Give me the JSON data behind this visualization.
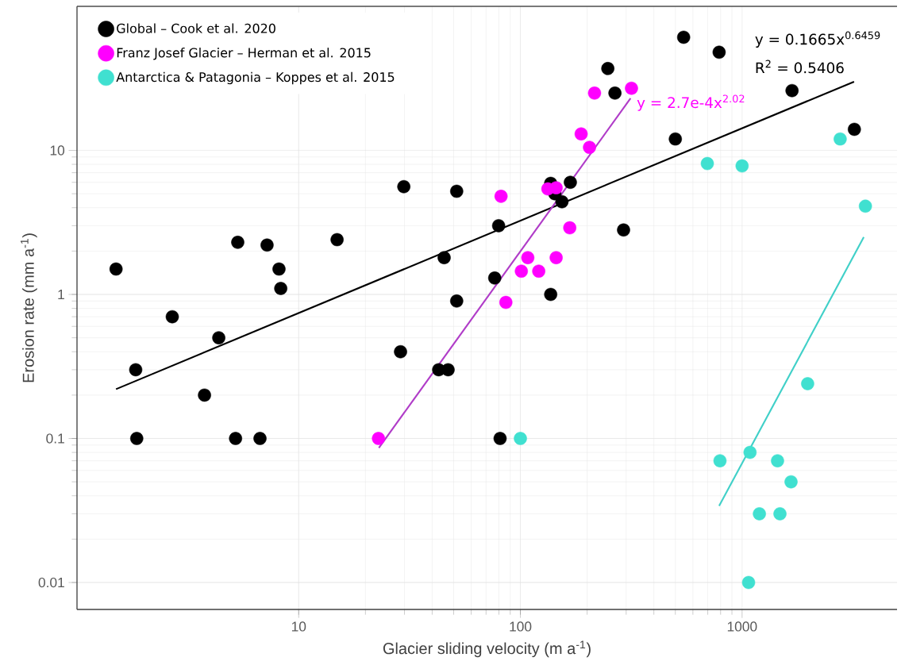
{
  "chart_data": {
    "type": "scatter",
    "xlabel": "Glacier sliding velocity (m a$^{-1}$)",
    "ylabel": "Erosion rate (mm a$^{-1}$)",
    "xlim": [
      1,
      5000
    ],
    "ylim": [
      0.0065,
      100
    ],
    "xticks": [
      10,
      100,
      1000
    ],
    "yticks": [
      0.01,
      0.1,
      1,
      10
    ],
    "log": "xy",
    "grid": true,
    "legend": "top left",
    "marker": "circle",
    "series": [
      {
        "name": "Global – Cook et al. 2020",
        "color": "#000000",
        "x": [
          1.5,
          1.84,
          1.86,
          2.69,
          3.76,
          4.36,
          5.19,
          5.31,
          6.69,
          7.2,
          8.15,
          8.3,
          14.9,
          28.8,
          29.8,
          42.8,
          45.3,
          47.2,
          51.6,
          51.6,
          76.6,
          79.8,
          81,
          137,
          137,
          143,
          154,
          168,
          248,
          267,
          292,
          500,
          545,
          788,
          1680,
          3210
        ],
        "values": [
          1.5,
          0.3,
          0.1,
          0.7,
          0.2,
          0.5,
          0.1,
          2.3,
          0.1,
          2.2,
          1.5,
          1.1,
          2.4,
          0.4,
          5.6,
          0.3,
          1.8,
          0.3,
          5.2,
          0.9,
          1.3,
          3.0,
          0.1,
          5.9,
          1.0,
          5.0,
          4.4,
          6.0,
          37,
          25,
          2.8,
          12,
          61,
          48,
          26,
          14
        ]
      },
      {
        "name": "Franz Josef Glacier – Herman et al. 2015",
        "color": "#ff00ff",
        "x": [
          22.9,
          81.8,
          86,
          101,
          108,
          121,
          133,
          145,
          145,
          167,
          188,
          205,
          216,
          317
        ],
        "values": [
          0.1,
          4.8,
          0.88,
          1.45,
          1.8,
          1.45,
          5.4,
          1.8,
          5.5,
          2.9,
          13,
          10.5,
          25,
          27
        ]
      },
      {
        "name": "Antarctica & Patagonia – Koppes et al. 2015",
        "color": "#40e0d0",
        "x": [
          100,
          697,
          795,
          1000,
          1070,
          1086,
          1197,
          1445,
          1482,
          1663,
          1976,
          2770,
          3600
        ],
        "values": [
          0.1,
          8.1,
          0.07,
          7.8,
          0.01,
          0.08,
          0.03,
          0.07,
          0.03,
          0.05,
          0.24,
          12,
          4.1
        ]
      },
      {
        "type": "line",
        "marker": "none",
        "color": "#000000",
        "x": [
          1.5,
          3200
        ],
        "values": [
          0.22,
          30
        ]
      },
      {
        "type": "line",
        "marker": "none",
        "color": "#b03cc8",
        "x": [
          23,
          314
        ],
        "values": [
          0.086,
          23
        ]
      },
      {
        "type": "line",
        "marker": "none",
        "color": "#40d0c8",
        "x": [
          788,
          3540
        ],
        "values": [
          0.034,
          2.5
        ]
      }
    ],
    "annotations": [
      "y = 0.1665x$^{0.6459}$",
      "R$^{2}$ = 0.5406",
      "y = 2.7e-4x$^{2.02}$"
    ]
  }
}
